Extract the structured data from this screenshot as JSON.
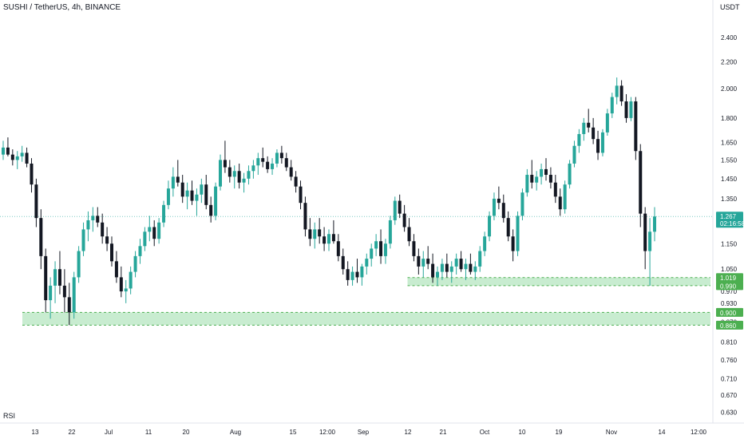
{
  "header": {
    "symbol_title": "SUSHI / TetherUS, 4h, BINANCE",
    "currency": "USDT"
  },
  "indicator": {
    "label": "RSI"
  },
  "colors": {
    "up": "#26a69a",
    "down": "#131722",
    "zone_fill": "#c8ecd0",
    "zone_line": "#4caf50",
    "badge_green": "#26a69a",
    "badge_zone": "#4caf50",
    "last_line": "#26a69a",
    "text": "#131722",
    "axis_line": "#e0e3eb"
  },
  "chart_data": {
    "type": "candlestick",
    "title": "SUSHI / TetherUS, 4h, BINANCE",
    "y_axis": {
      "label": "USDT",
      "scale": "log",
      "ticks": [
        "2.400",
        "2.200",
        "2.000",
        "1.800",
        "1.650",
        "1.550",
        "1.450",
        "1.350",
        "1.150",
        "1.050",
        "0.970",
        "0.930",
        "0.870",
        "0.810",
        "0.760",
        "0.710",
        "0.670",
        "0.630"
      ],
      "range": [
        0.61,
        2.65
      ]
    },
    "x_axis": {
      "ticks": [
        "13",
        "22",
        "Jul",
        "11",
        "20",
        "Aug",
        "15",
        "12:00",
        "Sep",
        "12",
        "21",
        "Oct",
        "10",
        "19",
        "Nov",
        "14",
        "12:00"
      ]
    },
    "series": [
      {
        "values": [
          [
            1.58,
            1.66,
            1.55,
            1.62
          ],
          [
            1.62,
            1.68,
            1.57,
            1.58
          ],
          [
            1.58,
            1.61,
            1.52,
            1.55
          ],
          [
            1.55,
            1.6,
            1.5,
            1.57
          ],
          [
            1.57,
            1.63,
            1.54,
            1.59
          ],
          [
            1.59,
            1.62,
            1.51,
            1.53
          ],
          [
            1.53,
            1.56,
            1.38,
            1.42
          ],
          [
            1.42,
            1.45,
            1.22,
            1.26
          ],
          [
            1.26,
            1.3,
            1.05,
            1.1
          ],
          [
            1.1,
            1.13,
            0.9,
            0.94
          ],
          [
            0.94,
            1.02,
            0.88,
            0.99
          ],
          [
            0.99,
            1.08,
            0.93,
            1.05
          ],
          [
            1.05,
            1.12,
            0.96,
            0.99
          ],
          [
            0.99,
            1.05,
            0.9,
            0.95
          ],
          [
            0.95,
            1.0,
            0.86,
            0.9
          ],
          [
            0.9,
            1.04,
            0.88,
            1.02
          ],
          [
            1.02,
            1.14,
            1.0,
            1.12
          ],
          [
            1.12,
            1.24,
            1.1,
            1.21
          ],
          [
            1.21,
            1.29,
            1.16,
            1.25
          ],
          [
            1.25,
            1.31,
            1.2,
            1.27
          ],
          [
            1.27,
            1.31,
            1.22,
            1.24
          ],
          [
            1.24,
            1.28,
            1.15,
            1.18
          ],
          [
            1.18,
            1.22,
            1.12,
            1.15
          ],
          [
            1.15,
            1.18,
            1.06,
            1.08
          ],
          [
            1.08,
            1.12,
            1.0,
            1.02
          ],
          [
            1.02,
            1.06,
            0.95,
            0.97
          ],
          [
            0.97,
            1.01,
            0.93,
            0.98
          ],
          [
            0.98,
            1.06,
            0.96,
            1.04
          ],
          [
            1.04,
            1.12,
            1.02,
            1.1
          ],
          [
            1.1,
            1.17,
            1.07,
            1.14
          ],
          [
            1.14,
            1.22,
            1.12,
            1.2
          ],
          [
            1.2,
            1.27,
            1.16,
            1.22
          ],
          [
            1.22,
            1.25,
            1.14,
            1.17
          ],
          [
            1.17,
            1.26,
            1.15,
            1.24
          ],
          [
            1.24,
            1.34,
            1.22,
            1.32
          ],
          [
            1.32,
            1.44,
            1.3,
            1.4
          ],
          [
            1.4,
            1.51,
            1.36,
            1.46
          ],
          [
            1.46,
            1.55,
            1.41,
            1.43
          ],
          [
            1.43,
            1.47,
            1.33,
            1.36
          ],
          [
            1.36,
            1.43,
            1.3,
            1.39
          ],
          [
            1.39,
            1.44,
            1.32,
            1.34
          ],
          [
            1.34,
            1.4,
            1.27,
            1.37
          ],
          [
            1.37,
            1.45,
            1.33,
            1.42
          ],
          [
            1.42,
            1.47,
            1.3,
            1.32
          ],
          [
            1.32,
            1.36,
            1.24,
            1.27
          ],
          [
            1.27,
            1.43,
            1.25,
            1.41
          ],
          [
            1.41,
            1.58,
            1.39,
            1.55
          ],
          [
            1.55,
            1.66,
            1.48,
            1.51
          ],
          [
            1.51,
            1.55,
            1.43,
            1.46
          ],
          [
            1.46,
            1.52,
            1.4,
            1.49
          ],
          [
            1.49,
            1.53,
            1.4,
            1.43
          ],
          [
            1.43,
            1.48,
            1.38,
            1.45
          ],
          [
            1.45,
            1.52,
            1.42,
            1.49
          ],
          [
            1.49,
            1.55,
            1.45,
            1.52
          ],
          [
            1.52,
            1.59,
            1.47,
            1.56
          ],
          [
            1.56,
            1.62,
            1.51,
            1.54
          ],
          [
            1.54,
            1.57,
            1.48,
            1.5
          ],
          [
            1.5,
            1.56,
            1.47,
            1.53
          ],
          [
            1.53,
            1.61,
            1.51,
            1.59
          ],
          [
            1.59,
            1.63,
            1.53,
            1.56
          ],
          [
            1.56,
            1.59,
            1.49,
            1.51
          ],
          [
            1.51,
            1.55,
            1.44,
            1.46
          ],
          [
            1.46,
            1.49,
            1.38,
            1.41
          ],
          [
            1.41,
            1.44,
            1.3,
            1.33
          ],
          [
            1.33,
            1.36,
            1.18,
            1.21
          ],
          [
            1.21,
            1.26,
            1.14,
            1.17
          ],
          [
            1.17,
            1.24,
            1.13,
            1.21
          ],
          [
            1.21,
            1.26,
            1.15,
            1.18
          ],
          [
            1.18,
            1.22,
            1.12,
            1.15
          ],
          [
            1.15,
            1.21,
            1.12,
            1.19
          ],
          [
            1.19,
            1.25,
            1.15,
            1.16
          ],
          [
            1.16,
            1.19,
            1.08,
            1.1
          ],
          [
            1.1,
            1.13,
            1.03,
            1.05
          ],
          [
            1.05,
            1.08,
            0.99,
            1.01
          ],
          [
            1.01,
            1.06,
            0.99,
            1.04
          ],
          [
            1.04,
            1.09,
            1.0,
            1.02
          ],
          [
            1.02,
            1.07,
            0.99,
            1.06
          ],
          [
            1.06,
            1.11,
            1.03,
            1.09
          ],
          [
            1.09,
            1.15,
            1.06,
            1.13
          ],
          [
            1.13,
            1.19,
            1.1,
            1.16
          ],
          [
            1.16,
            1.21,
            1.07,
            1.1
          ],
          [
            1.1,
            1.17,
            1.07,
            1.15
          ],
          [
            1.15,
            1.27,
            1.13,
            1.25
          ],
          [
            1.25,
            1.36,
            1.23,
            1.34
          ],
          [
            1.34,
            1.37,
            1.26,
            1.28
          ],
          [
            1.28,
            1.32,
            1.2,
            1.22
          ],
          [
            1.22,
            1.26,
            1.14,
            1.16
          ],
          [
            1.16,
            1.19,
            1.08,
            1.1
          ],
          [
            1.1,
            1.13,
            1.03,
            1.06
          ],
          [
            1.06,
            1.12,
            1.02,
            1.09
          ],
          [
            1.09,
            1.14,
            1.05,
            1.07
          ],
          [
            1.07,
            1.11,
            1.0,
            1.02
          ],
          [
            1.02,
            1.06,
            0.99,
            1.04
          ],
          [
            1.04,
            1.09,
            1.01,
            1.07
          ],
          [
            1.07,
            1.11,
            1.02,
            1.04
          ],
          [
            1.04,
            1.08,
            1.0,
            1.06
          ],
          [
            1.06,
            1.11,
            1.03,
            1.09
          ],
          [
            1.09,
            1.12,
            1.04,
            1.05
          ],
          [
            1.05,
            1.09,
            1.01,
            1.07
          ],
          [
            1.07,
            1.11,
            1.03,
            1.04
          ],
          [
            1.04,
            1.08,
            1.01,
            1.06
          ],
          [
            1.06,
            1.14,
            1.04,
            1.12
          ],
          [
            1.12,
            1.2,
            1.1,
            1.18
          ],
          [
            1.18,
            1.29,
            1.16,
            1.27
          ],
          [
            1.27,
            1.38,
            1.25,
            1.35
          ],
          [
            1.35,
            1.41,
            1.3,
            1.33
          ],
          [
            1.33,
            1.37,
            1.24,
            1.26
          ],
          [
            1.26,
            1.29,
            1.16,
            1.18
          ],
          [
            1.18,
            1.21,
            1.08,
            1.12
          ],
          [
            1.12,
            1.29,
            1.1,
            1.27
          ],
          [
            1.27,
            1.4,
            1.25,
            1.38
          ],
          [
            1.38,
            1.5,
            1.36,
            1.47
          ],
          [
            1.47,
            1.55,
            1.4,
            1.43
          ],
          [
            1.43,
            1.49,
            1.39,
            1.46
          ],
          [
            1.46,
            1.53,
            1.42,
            1.5
          ],
          [
            1.5,
            1.56,
            1.44,
            1.47
          ],
          [
            1.47,
            1.51,
            1.4,
            1.43
          ],
          [
            1.43,
            1.47,
            1.33,
            1.36
          ],
          [
            1.36,
            1.4,
            1.27,
            1.3
          ],
          [
            1.3,
            1.44,
            1.28,
            1.42
          ],
          [
            1.42,
            1.55,
            1.4,
            1.53
          ],
          [
            1.53,
            1.66,
            1.51,
            1.63
          ],
          [
            1.63,
            1.73,
            1.59,
            1.7
          ],
          [
            1.7,
            1.8,
            1.66,
            1.77
          ],
          [
            1.77,
            1.86,
            1.71,
            1.74
          ],
          [
            1.74,
            1.8,
            1.64,
            1.67
          ],
          [
            1.67,
            1.72,
            1.55,
            1.59
          ],
          [
            1.59,
            1.73,
            1.57,
            1.71
          ],
          [
            1.71,
            1.86,
            1.69,
            1.83
          ],
          [
            1.83,
            1.97,
            1.8,
            1.94
          ],
          [
            1.94,
            2.08,
            1.89,
            2.02
          ],
          [
            2.02,
            2.06,
            1.88,
            1.91
          ],
          [
            1.91,
            1.96,
            1.77,
            1.8
          ],
          [
            1.8,
            1.94,
            1.78,
            1.91
          ],
          [
            1.91,
            1.94,
            1.55,
            1.6
          ],
          [
            1.6,
            1.64,
            1.22,
            1.28
          ],
          [
            1.28,
            1.31,
            1.05,
            1.12
          ],
          [
            1.12,
            1.26,
            0.99,
            1.2
          ],
          [
            1.2,
            1.31,
            1.16,
            1.267
          ]
        ]
      }
    ],
    "last_price": "1.267",
    "countdown": "02:16:58",
    "zones": [
      {
        "top": 1.019,
        "bottom": 0.99,
        "top_label": "1.019",
        "bottom_label": "0.990",
        "start_index": 86
      },
      {
        "top": 0.9,
        "bottom": 0.86,
        "top_label": "0.900",
        "bottom_label": "0.860",
        "start_index": 0
      }
    ],
    "legend": "none",
    "grid": false
  }
}
